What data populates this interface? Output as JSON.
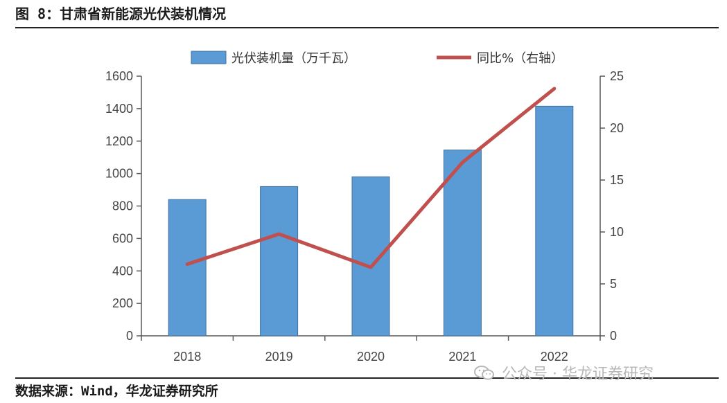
{
  "header": {
    "title": "图 8：甘肃省新能源光伏装机情况"
  },
  "footer": {
    "source": "数据来源：Wind，华龙证券研究所"
  },
  "watermark": {
    "text": "公众号 · 华龙证券研究",
    "icon": "wechat-icon"
  },
  "colors": {
    "bar": "#5b9bd5",
    "bar_stroke": "#41719c",
    "line": "#c0504d",
    "axis": "#595959"
  },
  "chart_data": {
    "type": "bar+line",
    "categories": [
      "2018",
      "2019",
      "2020",
      "2021",
      "2022"
    ],
    "series": [
      {
        "name": "光伏装机量（万千瓦）",
        "type": "bar",
        "axis": "left",
        "values": [
          840,
          920,
          980,
          1145,
          1415
        ]
      },
      {
        "name": "同比%（右轴）",
        "type": "line",
        "axis": "right",
        "values": [
          6.9,
          9.8,
          6.6,
          16.7,
          23.8
        ]
      }
    ],
    "y_left": {
      "min": 0,
      "max": 1600,
      "ticks": [
        "0",
        "200",
        "400",
        "600",
        "800",
        "1000",
        "1200",
        "1400",
        "1600"
      ]
    },
    "y_right": {
      "min": 0,
      "max": 25,
      "ticks": [
        "0",
        "5",
        "10",
        "15",
        "20",
        "25"
      ]
    },
    "legend_position": "top-center",
    "grid": false
  }
}
